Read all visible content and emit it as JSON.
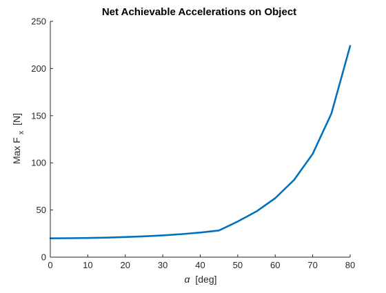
{
  "chart_data": {
    "type": "line",
    "title": "Net Achievable Accelerations on Object",
    "xlabel_symbol": "α",
    "xlabel_unit": "[deg]",
    "ylabel_main": "Max F",
    "ylabel_sub": "x",
    "ylabel_unit": "[N]",
    "xlim": [
      0,
      80
    ],
    "ylim": [
      0,
      250
    ],
    "xticks": [
      0,
      10,
      20,
      30,
      40,
      50,
      60,
      70,
      80
    ],
    "yticks": [
      0,
      50,
      100,
      150,
      200,
      250
    ],
    "grid": false,
    "series": [
      {
        "color": "#0072BD",
        "x": [
          0,
          5,
          10,
          15,
          20,
          25,
          30,
          35,
          40,
          45,
          50,
          55,
          60,
          65,
          70,
          75,
          80
        ],
        "y": [
          20,
          20.1,
          20.3,
          20.7,
          21.3,
          22.1,
          23.1,
          24.4,
          26.1,
          28.3,
          37.8,
          48.5,
          62.5,
          81.7,
          109.5,
          152.3,
          224
        ]
      }
    ]
  }
}
